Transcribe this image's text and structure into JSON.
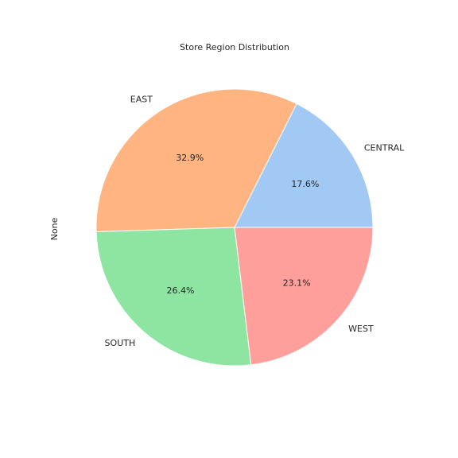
{
  "chart_data": {
    "type": "pie",
    "title": "Store Region Distribution",
    "ylabel": "None",
    "categories": [
      "CENTRAL",
      "EAST",
      "SOUTH",
      "WEST"
    ],
    "values": [
      17.6,
      32.9,
      26.4,
      23.1
    ],
    "labels": [
      "17.6%",
      "32.9%",
      "26.4%",
      "23.1%"
    ],
    "colors": [
      "#a1c9f4",
      "#ffb482",
      "#8de5a1",
      "#ff9f9b"
    ],
    "start_angle_deg": 0,
    "direction": "counterclockwise",
    "wedge_edge_color": "#ffffff"
  }
}
